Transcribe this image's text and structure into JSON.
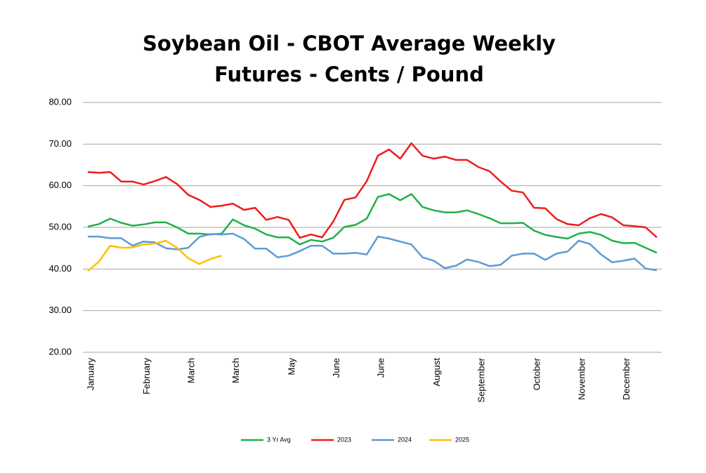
{
  "chart_data": {
    "type": "line",
    "title": "Soybean Oil - CBOT Average Weekly Futures - Cents / Pound",
    "categories": [
      "January",
      null,
      null,
      null,
      null,
      "February",
      null,
      null,
      null,
      "March",
      null,
      null,
      null,
      "March",
      null,
      null,
      null,
      null,
      "May",
      null,
      null,
      null,
      "June",
      null,
      null,
      null,
      "June",
      null,
      null,
      null,
      null,
      "August",
      null,
      null,
      null,
      "September",
      null,
      null,
      null,
      null,
      "October",
      null,
      null,
      null,
      "November",
      null,
      null,
      null,
      "December",
      null,
      null,
      null
    ],
    "series": [
      {
        "name": "3 Yr Avg",
        "color": "#22b04a",
        "values": [
          50.2,
          50.8,
          52.1,
          51.1,
          50.4,
          50.7,
          51.2,
          51.2,
          50.0,
          48.5,
          48.5,
          48.3,
          48.5,
          51.9,
          50.5,
          49.7,
          48.3,
          47.6,
          47.6,
          45.9,
          47.0,
          46.6,
          47.5,
          50.1,
          50.6,
          52.1,
          57.3,
          58.0,
          56.5,
          58.0,
          54.9,
          54.1,
          53.6,
          53.6,
          54.1,
          53.2,
          52.2,
          51.0,
          51.0,
          51.1,
          49.2,
          48.2,
          47.7,
          47.3,
          48.5,
          48.9,
          48.2,
          46.8,
          46.2,
          46.3,
          45.1,
          43.9
        ]
      },
      {
        "name": "2023",
        "color": "#ee1c1c",
        "values": [
          63.3,
          63.1,
          63.3,
          61.0,
          61.0,
          60.3,
          61.1,
          62.1,
          60.4,
          57.8,
          56.6,
          54.9,
          55.2,
          55.7,
          54.2,
          54.7,
          51.8,
          52.5,
          51.8,
          47.5,
          48.3,
          47.6,
          51.4,
          56.6,
          57.2,
          61.1,
          67.2,
          68.7,
          66.5,
          70.2,
          67.2,
          66.5,
          67.0,
          66.2,
          66.2,
          64.5,
          63.5,
          61.0,
          58.8,
          58.4,
          54.7,
          54.6,
          52.0,
          50.8,
          50.5,
          52.2,
          53.2,
          52.4,
          50.5,
          50.3,
          50.0,
          47.6
        ]
      },
      {
        "name": "2024",
        "color": "#5b9bd5",
        "values": [
          47.8,
          47.8,
          47.4,
          47.4,
          45.6,
          46.6,
          46.4,
          45.0,
          44.7,
          45.1,
          47.7,
          48.4,
          48.3,
          48.5,
          47.2,
          44.9,
          44.9,
          42.8,
          43.2,
          44.3,
          45.6,
          45.6,
          43.7,
          43.7,
          43.9,
          43.5,
          47.8,
          47.3,
          46.6,
          45.9,
          42.8,
          42.0,
          40.2,
          40.8,
          42.3,
          41.7,
          40.7,
          41.0,
          43.2,
          43.7,
          43.7,
          42.2,
          43.7,
          44.2,
          46.8,
          46.0,
          43.5,
          41.6,
          42.0,
          42.5,
          40.1,
          39.7
        ]
      },
      {
        "name": "2025",
        "color": "#ffc000",
        "values": [
          39.5,
          41.8,
          45.6,
          45.1,
          45.2,
          45.9,
          46.1,
          46.8,
          45.1,
          42.6,
          41.2,
          42.4,
          43.2,
          null,
          null,
          null,
          null,
          null,
          null,
          null,
          null,
          null,
          null,
          null,
          null,
          null,
          null,
          null,
          null,
          null,
          null,
          null,
          null,
          null,
          null,
          null,
          null,
          null,
          null,
          null,
          null,
          null,
          null,
          null,
          null,
          null,
          null,
          null,
          null,
          null,
          null,
          null
        ]
      }
    ],
    "ylim": [
      20,
      80
    ],
    "yticks": [
      {
        "value": 20,
        "label": "20.00"
      },
      {
        "value": 30,
        "label": "30.00"
      },
      {
        "value": 40,
        "label": "40.00"
      },
      {
        "value": 50,
        "label": "50.00"
      },
      {
        "value": 60,
        "label": "60.00"
      },
      {
        "value": 70,
        "label": "70.00"
      },
      {
        "value": 80,
        "label": "80.00"
      }
    ],
    "grid": true,
    "legend": "bottom"
  }
}
